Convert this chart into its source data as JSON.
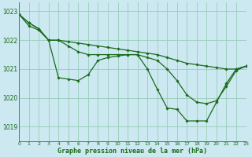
{
  "title": "Graphe pression niveau de la mer (hPa)",
  "bg_color": "#cce8f0",
  "grid_color": "#99ccbb",
  "line_color": "#1a6b1a",
  "xlim": [
    0,
    23
  ],
  "ylim": [
    1018.5,
    1023.3
  ],
  "yticks": [
    1019,
    1020,
    1021,
    1022,
    1023
  ],
  "xticks": [
    0,
    1,
    2,
    3,
    4,
    5,
    6,
    7,
    8,
    9,
    10,
    11,
    12,
    13,
    14,
    15,
    16,
    17,
    18,
    19,
    20,
    21,
    22,
    23
  ],
  "series": [
    [
      1022.9,
      1022.6,
      1022.4,
      1022.0,
      1022.0,
      1021.95,
      1021.9,
      1021.85,
      1021.8,
      1021.75,
      1021.7,
      1021.65,
      1021.6,
      1021.55,
      1021.5,
      1021.4,
      1021.3,
      1021.2,
      1021.15,
      1021.1,
      1021.05,
      1021.0,
      1021.0,
      1021.1
    ],
    [
      1022.9,
      1022.6,
      1022.4,
      1022.0,
      1022.0,
      1021.8,
      1021.6,
      1021.5,
      1021.5,
      1021.5,
      1021.5,
      1021.5,
      1021.5,
      1021.4,
      1021.3,
      1021.0,
      1020.6,
      1020.1,
      1019.85,
      1019.8,
      1019.9,
      1020.4,
      1020.95,
      1021.1
    ],
    [
      1022.9,
      1022.5,
      1022.35,
      1022.0,
      1020.7,
      1020.65,
      1020.6,
      1020.8,
      1021.3,
      1021.4,
      1021.45,
      1021.5,
      1021.5,
      1021.0,
      1020.3,
      1019.65,
      1019.6,
      1019.2,
      1019.2,
      1019.2,
      1019.85,
      1020.5,
      1021.0,
      1021.1
    ]
  ]
}
